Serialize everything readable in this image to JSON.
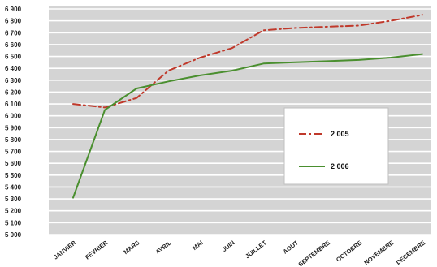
{
  "chart_data": {
    "type": "line",
    "categories": [
      "JANVIER",
      "FEVRIER",
      "MARS",
      "AVRIL",
      "MAI",
      "JUIN",
      "JUILLET",
      "AOUT",
      "SEPTEMBRE",
      "OCTOBRE",
      "NOVEMBRE",
      "DECEMBRE"
    ],
    "series": [
      {
        "name": "2 005",
        "color": "#c0392b",
        "line_style": "dash-dot",
        "values": [
          6100,
          6070,
          6150,
          6380,
          6490,
          6570,
          6720,
          6740,
          6750,
          6760,
          6800,
          6850
        ]
      },
      {
        "name": "2 006",
        "color": "#4a8f2f",
        "line_style": "solid",
        "values": [
          5310,
          6050,
          6230,
          6290,
          6340,
          6380,
          6440,
          6450,
          6460,
          6470,
          6490,
          6520
        ]
      }
    ],
    "y_ticks": [
      "5 000",
      "5 100",
      "5 200",
      "5 300",
      "5 400",
      "5 500",
      "5 600",
      "5 700",
      "5 800",
      "5 900",
      "6 000",
      "6 100",
      "6 200",
      "6 300",
      "6 400",
      "6 500",
      "6 600",
      "6 700",
      "6 800",
      "6 900"
    ],
    "ylim": [
      5000,
      6900
    ],
    "grid": true,
    "legend_position": "right",
    "plot_background": "#d4d4d4",
    "gridline_color": "#ffffff",
    "title": "",
    "xlabel": "",
    "ylabel": ""
  }
}
